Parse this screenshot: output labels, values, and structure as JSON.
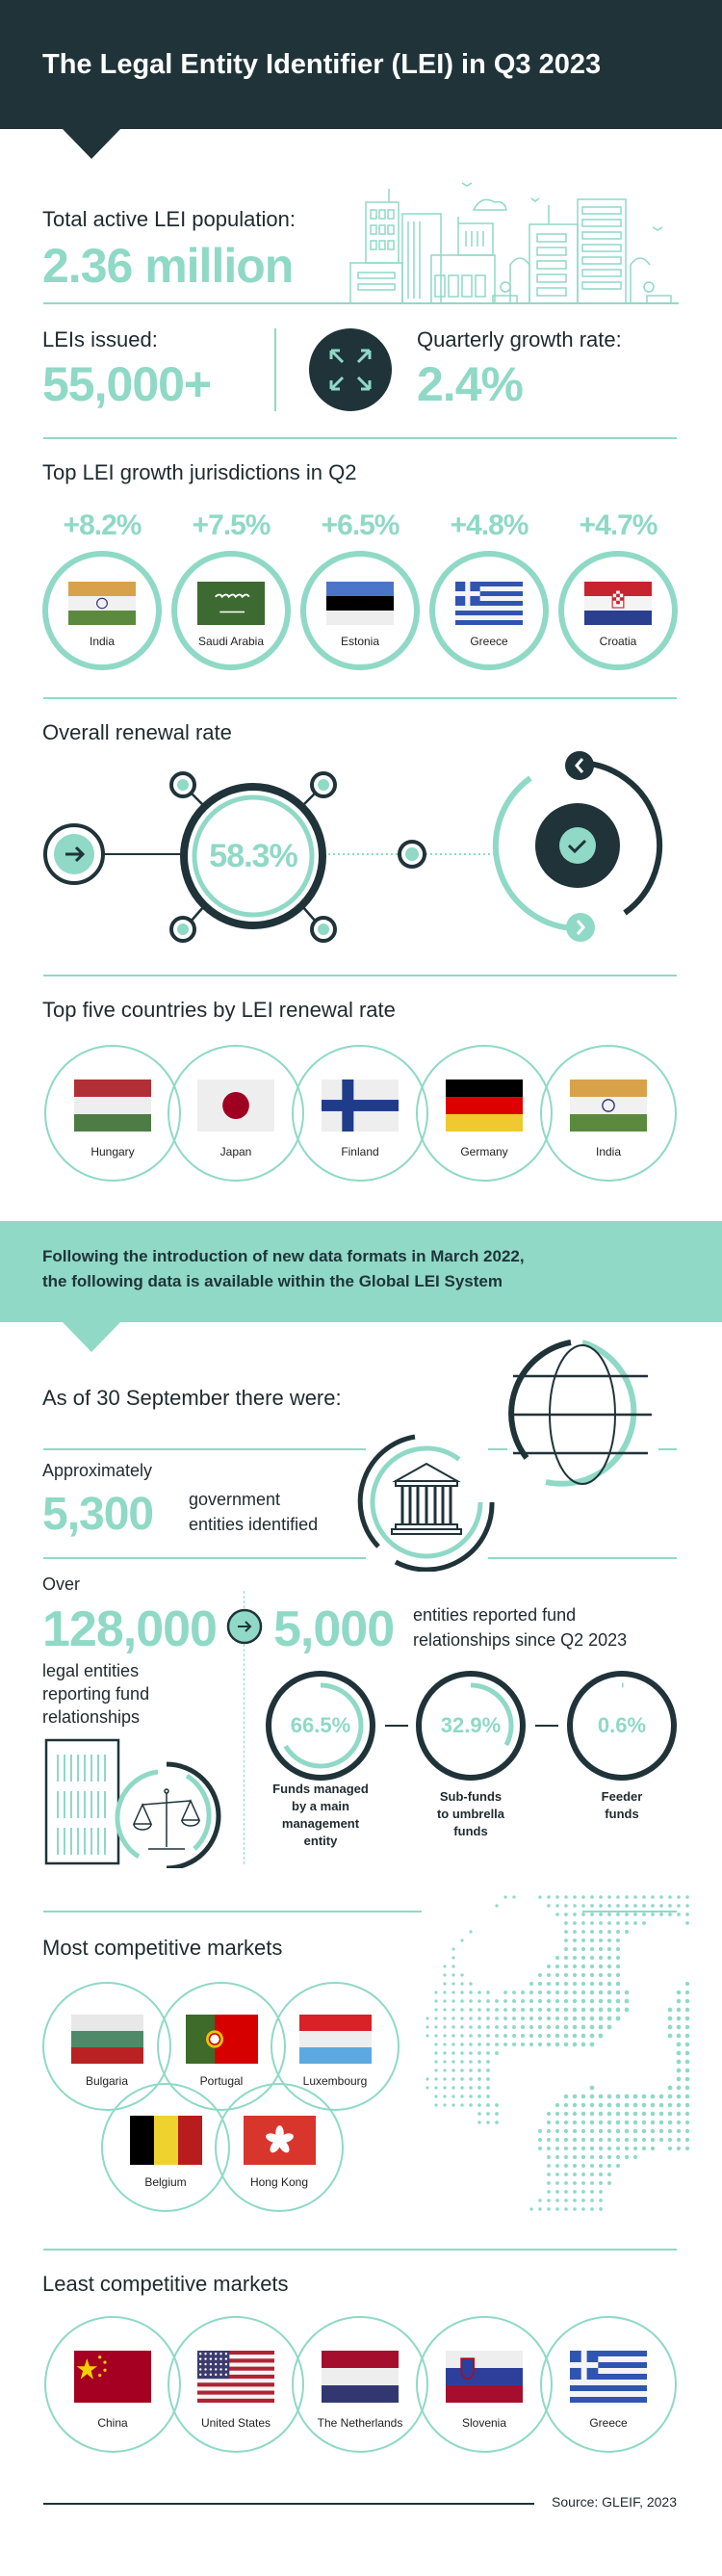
{
  "header": {
    "title": "The Legal Entity Identifier (LEI) in Q3 2023"
  },
  "population": {
    "label": "Total active LEI population:",
    "value": "2.36 million"
  },
  "issued": {
    "label": "LEIs issued:",
    "value": "55,000+"
  },
  "growth": {
    "label": "Quarterly growth rate:",
    "value": "2.4%",
    "icon": "expand-arrows-icon"
  },
  "top_growth": {
    "heading": "Top LEI growth jurisdictions in Q2",
    "items": [
      {
        "country": "India",
        "change": "+8.2%"
      },
      {
        "country": "Saudi Arabia",
        "change": "+7.5%"
      },
      {
        "country": "Estonia",
        "change": "+6.5%"
      },
      {
        "country": "Greece",
        "change": "+4.8%"
      },
      {
        "country": "Croatia",
        "change": "+4.7%"
      }
    ]
  },
  "renewal": {
    "heading": "Overall renewal rate",
    "value": "58.3%"
  },
  "top_renewal": {
    "heading": "Top five countries by LEI renewal rate",
    "countries": [
      "Hungary",
      "Japan",
      "Finland",
      "Germany",
      "India"
    ]
  },
  "banner": {
    "line1": "Following the introduction of new data formats in March 2022,",
    "line2": "the following data is available within the Global LEI System"
  },
  "as_of": "As of 30 September there were:",
  "government": {
    "prefix": "Approximately",
    "value": "5,300",
    "line1": "government",
    "line2": "entities identified"
  },
  "funds": {
    "prefix": "Over",
    "value": "128,000",
    "desc": [
      "legal entities",
      "reporting fund",
      "relationships"
    ],
    "new_value": "5,000",
    "new_desc": [
      "entities reported fund",
      "relationships since Q2 2023"
    ],
    "breakdown": [
      {
        "value": "66.5%",
        "share": 66.5,
        "label": [
          "Funds managed",
          "by a main",
          "management",
          "entity"
        ]
      },
      {
        "value": "32.9%",
        "share": 32.9,
        "label": [
          "Sub-funds",
          "to umbrella",
          "funds"
        ]
      },
      {
        "value": "0.6%",
        "share": 0.6,
        "label": [
          "Feeder",
          "funds"
        ]
      }
    ]
  },
  "most_competitive": {
    "heading": "Most competitive markets",
    "countries": [
      "Bulgaria",
      "Portugal",
      "Luxembourg",
      "Belgium",
      "Hong Kong"
    ]
  },
  "least_competitive": {
    "heading": "Least competitive markets",
    "countries": [
      "China",
      "United States",
      "The Netherlands",
      "Slovenia",
      "Greece"
    ]
  },
  "source": "Source: GLEIF, 2023",
  "colors": {
    "dark": "#1f3339",
    "teal": "#8fd9c6"
  }
}
